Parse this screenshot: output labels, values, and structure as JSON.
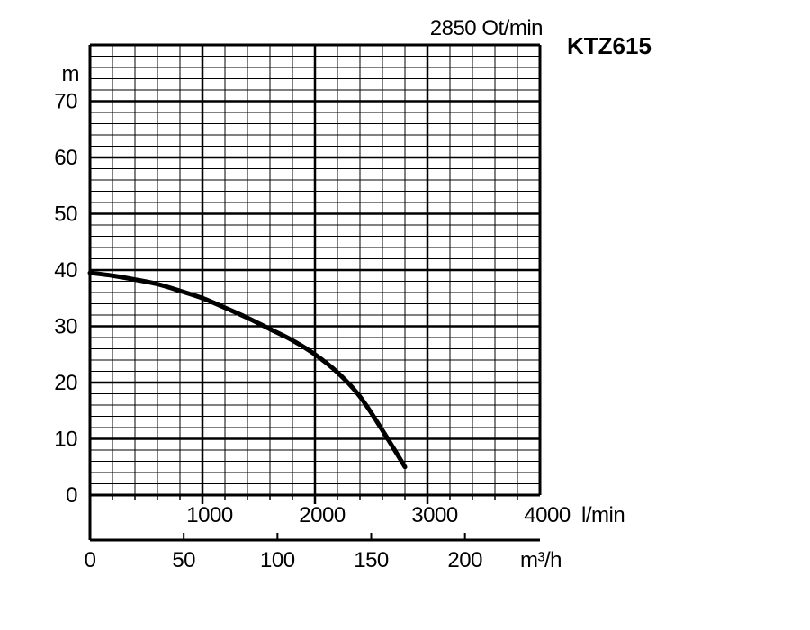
{
  "chart_data": {
    "type": "line",
    "title": "KTZ615",
    "subtitle": "2850 Ot/min",
    "ylabel": "m",
    "xlabel_primary": "l/min",
    "xlabel_secondary": "m³/h",
    "ylim": [
      0,
      80
    ],
    "xlim": [
      0,
      4000
    ],
    "y_ticks": [
      "0",
      "10",
      "20",
      "30",
      "40",
      "50",
      "60",
      "70"
    ],
    "y_tick_values": [
      0,
      10,
      20,
      30,
      40,
      50,
      60,
      70
    ],
    "x_ticks_primary": [
      "1000",
      "2000",
      "3000",
      "4000"
    ],
    "x_tick_values_primary": [
      1000,
      2000,
      3000,
      4000
    ],
    "x_ticks_secondary": [
      "0",
      "50",
      "100",
      "150",
      "200"
    ],
    "x_tick_values_secondary": [
      0,
      50,
      100,
      150,
      200
    ],
    "secondary_range": [
      0,
      240
    ],
    "grid": true,
    "grid_minor": {
      "x_step": 200,
      "y_step": 2
    },
    "grid_major": {
      "x_step": 1000,
      "y_step": 10
    },
    "colors": {
      "line": "#000000",
      "grid": "#000000",
      "background": "#ffffff"
    },
    "series": [
      {
        "x": [
          0,
          200,
          400,
          600,
          800,
          1000,
          1200,
          1400,
          1600,
          1800,
          2000,
          2200,
          2400,
          2600,
          2800
        ],
        "y": [
          39.5,
          39,
          38.3,
          37.5,
          36.3,
          35,
          33.3,
          31.5,
          29.5,
          27.5,
          25,
          21.8,
          17.5,
          11.5,
          5
        ]
      }
    ]
  }
}
